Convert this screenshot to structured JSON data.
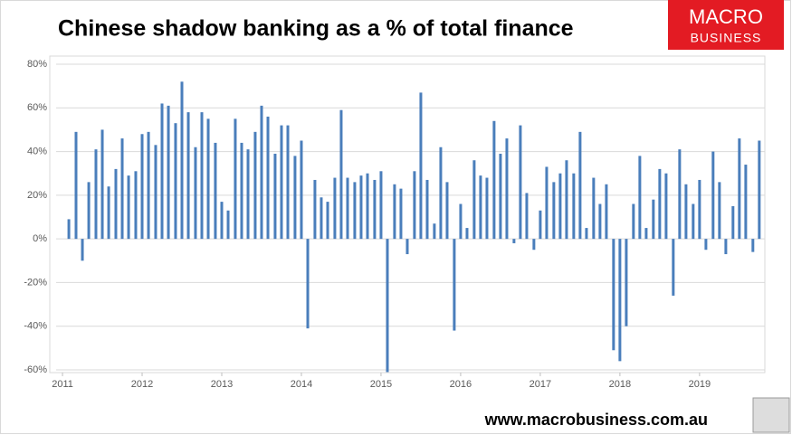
{
  "chart_data": {
    "type": "bar",
    "title": "Chinese shadow banking as a % of total finance",
    "logo": {
      "line1": "MACRO",
      "line2": "BUSINESS"
    },
    "source": "www.macrobusiness.com.au",
    "color": "#4a7ebb",
    "grid": true,
    "x": [
      2011.08,
      2011.17,
      2011.25,
      2011.33,
      2011.42,
      2011.5,
      2011.58,
      2011.67,
      2011.75,
      2011.83,
      2011.92,
      2012,
      2012.08,
      2012.17,
      2012.25,
      2012.33,
      2012.42,
      2012.5,
      2012.58,
      2012.67,
      2012.75,
      2012.83,
      2012.92,
      2013,
      2013.08,
      2013.17,
      2013.25,
      2013.33,
      2013.42,
      2013.5,
      2013.58,
      2013.67,
      2013.75,
      2013.83,
      2013.92,
      2014,
      2014.08,
      2014.17,
      2014.25,
      2014.33,
      2014.42,
      2014.5,
      2014.58,
      2014.67,
      2014.75,
      2014.83,
      2014.92,
      2015,
      2015.08,
      2015.17,
      2015.25,
      2015.33,
      2015.42,
      2015.5,
      2015.58,
      2015.67,
      2015.75,
      2015.83,
      2015.92,
      2016,
      2016.08,
      2016.17,
      2016.25,
      2016.33,
      2016.42,
      2016.5,
      2016.58,
      2016.67,
      2016.75,
      2016.83,
      2016.92,
      2017,
      2017.08,
      2017.17,
      2017.25,
      2017.33,
      2017.42,
      2017.5,
      2017.58,
      2017.67,
      2017.75,
      2017.83,
      2017.92,
      2018,
      2018.08,
      2018.17,
      2018.25,
      2018.33,
      2018.42,
      2018.5,
      2018.58,
      2018.67,
      2018.75,
      2018.83,
      2018.92,
      2019,
      2019.08,
      2019.17,
      2019.25,
      2019.33,
      2019.42,
      2019.5,
      2019.58,
      2019.67,
      2019.75
    ],
    "values": [
      9,
      49,
      -10,
      26,
      41,
      50,
      24,
      32,
      46,
      29,
      31,
      48,
      49,
      43,
      62,
      61,
      53,
      72,
      58,
      42,
      58,
      55,
      44,
      17,
      13,
      55,
      44,
      41,
      49,
      61,
      56,
      39,
      52,
      52,
      38,
      45,
      -41,
      27,
      19,
      17,
      28,
      59,
      28,
      26,
      29,
      30,
      27,
      31,
      -61,
      25,
      23,
      -7,
      31,
      67,
      27,
      7,
      42,
      26,
      -42,
      16,
      5,
      36,
      29,
      28,
      54,
      39,
      46,
      -2,
      52,
      21,
      -5,
      13,
      33,
      26,
      30,
      36,
      30,
      49,
      5,
      28,
      16,
      25,
      -51,
      -56,
      -40,
      16,
      38,
      5,
      18,
      32,
      30,
      -26,
      41,
      25,
      16,
      27,
      -5,
      40,
      26,
      -7,
      15,
      46,
      34,
      -6,
      45
    ],
    "xlim": [
      2010.92,
      2019.82
    ],
    "xticks": [
      2011,
      2012,
      2013,
      2014,
      2015,
      2016,
      2017,
      2018,
      2019
    ],
    "ylim": [
      -60,
      80
    ],
    "yticks": [
      {
        "value": -60,
        "label": "-60%"
      },
      {
        "value": -40,
        "label": "-40%"
      },
      {
        "value": -20,
        "label": "-20%"
      },
      {
        "value": 0,
        "label": "0%"
      },
      {
        "value": 20,
        "label": "20%"
      },
      {
        "value": 40,
        "label": "40%"
      },
      {
        "value": 60,
        "label": "60%"
      },
      {
        "value": 80,
        "label": "80%"
      }
    ]
  }
}
